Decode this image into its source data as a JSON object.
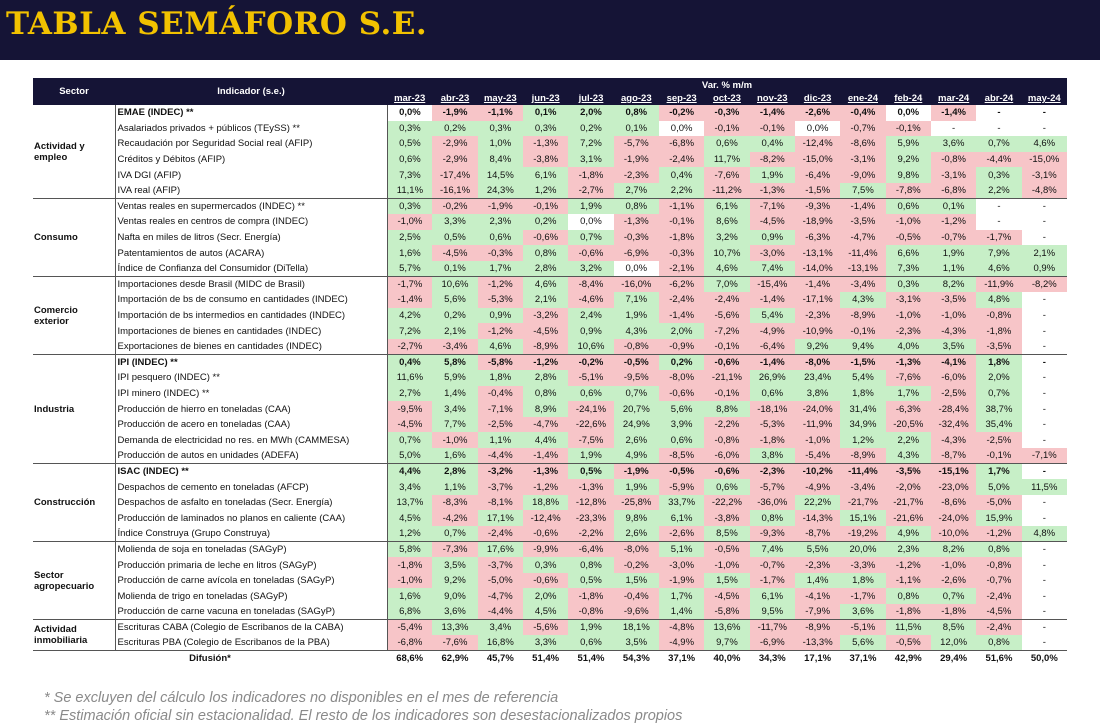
{
  "title": "TABLA SEMÁFORO S.E.",
  "headers": {
    "sector": "Sector",
    "indicator": "Indicador (s.e.)",
    "var": "Var. % m/m",
    "months": [
      "mar-23",
      "abr-23",
      "may-23",
      "jun-23",
      "jul-23",
      "ago-23",
      "sep-23",
      "oct-23",
      "nov-23",
      "dic-23",
      "ene-24",
      "feb-24",
      "mar-24",
      "abr-24",
      "may-24"
    ]
  },
  "groups": [
    {
      "sector": "Actividad y empleo",
      "rows": [
        {
          "name": "EMAE (INDEC) **",
          "bold": true,
          "values": [
            "0,0%",
            "-1,9%",
            "-1,1%",
            "0,1%",
            "2,0%",
            "0,8%",
            "-0,2%",
            "-0,3%",
            "-1,4%",
            "-2,6%",
            "-0,4%",
            "0,0%",
            "-1,4%",
            "-",
            "-"
          ]
        },
        {
          "name": "Asalariados privados + públicos (TEySS) **",
          "values": [
            "0,3%",
            "0,2%",
            "0,3%",
            "0,3%",
            "0,2%",
            "0,1%",
            "0,0%",
            "-0,1%",
            "-0,1%",
            "0,0%",
            "-0,7%",
            "-0,1%",
            "-",
            "-",
            "-"
          ]
        },
        {
          "name": "Recaudación por Seguridad Social real (AFIP)",
          "values": [
            "0,5%",
            "-2,9%",
            "1,0%",
            "-1,3%",
            "7,2%",
            "-5,7%",
            "-6,8%",
            "0,6%",
            "0,4%",
            "-12,4%",
            "-8,6%",
            "5,9%",
            "3,6%",
            "0,7%",
            "4,6%"
          ]
        },
        {
          "name": "Créditos y Débitos (AFIP)",
          "values": [
            "0,6%",
            "-2,9%",
            "8,4%",
            "-3,8%",
            "3,1%",
            "-1,9%",
            "-2,4%",
            "11,7%",
            "-8,2%",
            "-15,0%",
            "-3,1%",
            "9,2%",
            "-0,8%",
            "-4,4%",
            "-15,0%"
          ]
        },
        {
          "name": "IVA DGI (AFIP)",
          "values": [
            "7,3%",
            "-17,4%",
            "14,5%",
            "6,1%",
            "-1,8%",
            "-2,3%",
            "0,4%",
            "-7,6%",
            "1,9%",
            "-6,4%",
            "-9,0%",
            "9,8%",
            "-3,1%",
            "0,3%",
            "-3,1%"
          ]
        },
        {
          "name": "IVA real (AFIP)",
          "values": [
            "11,1%",
            "-16,1%",
            "24,3%",
            "1,2%",
            "-2,7%",
            "2,7%",
            "2,2%",
            "-11,2%",
            "-1,3%",
            "-1,5%",
            "7,5%",
            "-7,8%",
            "-6,8%",
            "2,2%",
            "-4,8%"
          ]
        }
      ]
    },
    {
      "sector": "Consumo",
      "rows": [
        {
          "name": "Ventas reales en supermercados (INDEC) **",
          "values": [
            "0,3%",
            "-0,2%",
            "-1,9%",
            "-0,1%",
            "1,9%",
            "0,8%",
            "-1,1%",
            "6,1%",
            "-7,1%",
            "-9,3%",
            "-1,4%",
            "0,6%",
            "0,1%",
            "-",
            "-"
          ]
        },
        {
          "name": "Ventas reales en centros de compra (INDEC)",
          "values": [
            "-1,0%",
            "3,3%",
            "2,3%",
            "0,2%",
            "0,0%",
            "-1,3%",
            "-0,1%",
            "8,6%",
            "-4,5%",
            "-18,9%",
            "-3,5%",
            "-1,0%",
            "-1,2%",
            "-",
            "-"
          ]
        },
        {
          "name": "Nafta en miles de litros (Secr. Energía)",
          "values": [
            "2,5%",
            "0,5%",
            "0,6%",
            "-0,6%",
            "0,7%",
            "-0,3%",
            "-1,8%",
            "3,2%",
            "0,9%",
            "-6,3%",
            "-4,7%",
            "-0,5%",
            "-0,7%",
            "-1,7%",
            "-"
          ]
        },
        {
          "name": "Patentamientos de autos (ACARA)",
          "values": [
            "1,6%",
            "-4,5%",
            "-0,3%",
            "0,8%",
            "-0,6%",
            "-6,9%",
            "-0,3%",
            "10,7%",
            "-3,0%",
            "-13,1%",
            "-11,4%",
            "6,6%",
            "1,9%",
            "7,9%",
            "2,1%"
          ]
        },
        {
          "name": "Índice de Confianza del Consumidor (DiTella)",
          "values": [
            "5,7%",
            "0,1%",
            "1,7%",
            "2,8%",
            "3,2%",
            "0,0%",
            "-2,1%",
            "4,6%",
            "7,4%",
            "-14,0%",
            "-13,1%",
            "7,3%",
            "1,1%",
            "4,6%",
            "0,9%"
          ]
        }
      ]
    },
    {
      "sector": "Comercio exterior",
      "rows": [
        {
          "name": "Importaciones desde Brasil (MIDC de Brasil)",
          "values": [
            "-1,7%",
            "10,6%",
            "-1,2%",
            "4,6%",
            "-8,4%",
            "-16,0%",
            "-6,2%",
            "7,0%",
            "-15,4%",
            "-1,4%",
            "-3,4%",
            "0,3%",
            "8,2%",
            "-11,9%",
            "-8,2%"
          ]
        },
        {
          "name": "Importación de bs de consumo en cantidades (INDEC)",
          "values": [
            "-1,4%",
            "5,6%",
            "-5,3%",
            "2,1%",
            "-4,6%",
            "7,1%",
            "-2,4%",
            "-2,4%",
            "-1,4%",
            "-17,1%",
            "4,3%",
            "-3,1%",
            "-3,5%",
            "4,8%",
            "-"
          ]
        },
        {
          "name": "Importación de bs intermedios en cantidades (INDEC)",
          "values": [
            "4,2%",
            "0,2%",
            "0,9%",
            "-3,2%",
            "2,4%",
            "1,9%",
            "-1,4%",
            "-5,6%",
            "5,4%",
            "-2,3%",
            "-8,9%",
            "-1,0%",
            "-1,0%",
            "-0,8%",
            "-"
          ]
        },
        {
          "name": "Importaciones de bienes en cantidades (INDEC)",
          "values": [
            "7,2%",
            "2,1%",
            "-1,2%",
            "-4,5%",
            "0,9%",
            "4,3%",
            "2,0%",
            "-7,2%",
            "-4,9%",
            "-10,9%",
            "-0,1%",
            "-2,3%",
            "-4,3%",
            "-1,8%",
            "-"
          ]
        },
        {
          "name": "Exportaciones de bienes en cantidades (INDEC)",
          "values": [
            "-2,7%",
            "-3,4%",
            "4,6%",
            "-8,9%",
            "10,6%",
            "-0,8%",
            "-0,9%",
            "-0,1%",
            "-6,4%",
            "9,2%",
            "9,4%",
            "4,0%",
            "3,5%",
            "-3,5%",
            "-"
          ]
        }
      ]
    },
    {
      "sector": "Industria",
      "rows": [
        {
          "name": "IPI (INDEC) **",
          "bold": true,
          "values": [
            "0,4%",
            "5,8%",
            "-5,8%",
            "-1,2%",
            "-0,2%",
            "-0,5%",
            "0,2%",
            "-0,6%",
            "-1,4%",
            "-8,0%",
            "-1,5%",
            "-1,3%",
            "-4,1%",
            "1,8%",
            "-"
          ]
        },
        {
          "name": "IPI pesquero (INDEC) **",
          "values": [
            "11,6%",
            "5,9%",
            "1,8%",
            "2,8%",
            "-5,1%",
            "-9,5%",
            "-8,0%",
            "-21,1%",
            "26,9%",
            "23,4%",
            "5,4%",
            "-7,6%",
            "-6,0%",
            "2,0%",
            "-"
          ]
        },
        {
          "name": "IPI minero (INDEC) **",
          "values": [
            "2,7%",
            "1,4%",
            "-0,4%",
            "0,8%",
            "0,6%",
            "0,7%",
            "-0,6%",
            "-0,1%",
            "0,6%",
            "3,8%",
            "1,8%",
            "1,7%",
            "-2,5%",
            "0,7%",
            "-"
          ]
        },
        {
          "name": "Producción de hierro en toneladas (CAA)",
          "values": [
            "-9,5%",
            "3,4%",
            "-7,1%",
            "8,9%",
            "-24,1%",
            "20,7%",
            "5,6%",
            "8,8%",
            "-18,1%",
            "-24,0%",
            "31,4%",
            "-6,3%",
            "-28,4%",
            "38,7%",
            "-"
          ]
        },
        {
          "name": "Producción de acero en toneladas (CAA)",
          "values": [
            "-4,5%",
            "7,7%",
            "-2,5%",
            "-4,7%",
            "-22,6%",
            "24,9%",
            "3,9%",
            "-2,2%",
            "-5,3%",
            "-11,9%",
            "34,9%",
            "-20,5%",
            "-32,4%",
            "35,4%",
            "-"
          ]
        },
        {
          "name": "Demanda de electricidad no res. en MWh (CAMMESA)",
          "values": [
            "0,7%",
            "-1,0%",
            "1,1%",
            "4,4%",
            "-7,5%",
            "2,6%",
            "0,6%",
            "-0,8%",
            "-1,8%",
            "-1,0%",
            "1,2%",
            "2,2%",
            "-4,3%",
            "-2,5%",
            "-"
          ]
        },
        {
          "name": "Producción de autos en unidades (ADEFA)",
          "values": [
            "5,0%",
            "1,6%",
            "-4,4%",
            "-1,4%",
            "1,9%",
            "4,9%",
            "-8,5%",
            "-6,0%",
            "3,8%",
            "-5,4%",
            "-8,9%",
            "4,3%",
            "-8,7%",
            "-0,1%",
            "-7,1%"
          ]
        }
      ]
    },
    {
      "sector": "Construcción",
      "rows": [
        {
          "name": "ISAC (INDEC) **",
          "bold": true,
          "values": [
            "4,4%",
            "2,8%",
            "-3,2%",
            "-1,3%",
            "0,5%",
            "-1,9%",
            "-0,5%",
            "-0,6%",
            "-2,3%",
            "-10,2%",
            "-11,4%",
            "-3,5%",
            "-15,1%",
            "1,7%",
            "-"
          ]
        },
        {
          "name": "Despachos de cemento en toneladas (AFCP)",
          "values": [
            "3,4%",
            "1,1%",
            "-3,7%",
            "-1,2%",
            "-1,3%",
            "1,9%",
            "-5,9%",
            "0,6%",
            "-5,7%",
            "-4,9%",
            "-3,4%",
            "-2,0%",
            "-23,0%",
            "5,0%",
            "11,5%"
          ]
        },
        {
          "name": "Despachos de asfalto en toneladas (Secr. Energía)",
          "values": [
            "13,7%",
            "-8,3%",
            "-8,1%",
            "18,8%",
            "-12,8%",
            "-25,8%",
            "33,7%",
            "-22,2%",
            "-36,0%",
            "22,2%",
            "-21,7%",
            "-21,7%",
            "-8,6%",
            "-5,0%",
            "-"
          ]
        },
        {
          "name": "Producción de laminados no planos en caliente (CAA)",
          "values": [
            "4,5%",
            "-4,2%",
            "17,1%",
            "-12,4%",
            "-23,3%",
            "9,8%",
            "6,1%",
            "-3,8%",
            "0,8%",
            "-14,3%",
            "15,1%",
            "-21,6%",
            "-24,0%",
            "15,9%",
            "-"
          ]
        },
        {
          "name": "Índice Construya (Grupo Construya)",
          "values": [
            "1,2%",
            "0,7%",
            "-2,4%",
            "-0,6%",
            "-2,2%",
            "2,6%",
            "-2,6%",
            "8,5%",
            "-9,3%",
            "-8,7%",
            "-19,2%",
            "4,9%",
            "-10,0%",
            "-1,2%",
            "4,8%"
          ]
        }
      ]
    },
    {
      "sector": "Sector agropecuario",
      "rows": [
        {
          "name": "Molienda de soja en toneladas (SAGyP)",
          "values": [
            "5,8%",
            "-7,3%",
            "17,6%",
            "-9,9%",
            "-6,4%",
            "-8,0%",
            "5,1%",
            "-0,5%",
            "7,4%",
            "5,5%",
            "20,0%",
            "2,3%",
            "8,2%",
            "0,8%",
            "-"
          ]
        },
        {
          "name": "Producción primaria de leche en litros (SAGyP)",
          "values": [
            "-1,8%",
            "3,5%",
            "-3,7%",
            "0,3%",
            "0,8%",
            "-0,2%",
            "-3,0%",
            "-1,0%",
            "-0,7%",
            "-2,3%",
            "-3,3%",
            "-1,2%",
            "-1,0%",
            "-0,8%",
            "-"
          ]
        },
        {
          "name": "Producción de carne avícola en toneladas (SAGyP)",
          "values": [
            "-1,0%",
            "9,2%",
            "-5,0%",
            "-0,6%",
            "0,5%",
            "1,5%",
            "-1,9%",
            "1,5%",
            "-1,7%",
            "1,4%",
            "1,8%",
            "-1,1%",
            "-2,6%",
            "-0,7%",
            "-"
          ]
        },
        {
          "name": "Molienda de trigo en toneladas (SAGyP)",
          "values": [
            "1,6%",
            "9,0%",
            "-4,7%",
            "2,0%",
            "-1,8%",
            "-0,4%",
            "1,7%",
            "-4,5%",
            "6,1%",
            "-4,1%",
            "-1,7%",
            "0,8%",
            "0,7%",
            "-2,4%",
            "-"
          ]
        },
        {
          "name": "Producción de carne vacuna en toneladas (SAGyP)",
          "values": [
            "6,8%",
            "3,6%",
            "-4,4%",
            "4,5%",
            "-0,8%",
            "-9,6%",
            "1,4%",
            "-5,8%",
            "9,5%",
            "-7,9%",
            "3,6%",
            "-1,8%",
            "-1,8%",
            "-4,5%",
            "-"
          ]
        }
      ]
    },
    {
      "sector": "Actividad inmobiliaria",
      "rows": [
        {
          "name": "Escrituras CABA (Colegio de Escribanos de la CABA)",
          "values": [
            "-5,4%",
            "13,3%",
            "3,4%",
            "-5,6%",
            "1,9%",
            "18,1%",
            "-4,8%",
            "13,6%",
            "-11,7%",
            "-8,9%",
            "-5,1%",
            "11,5%",
            "8,5%",
            "-2,4%",
            "-"
          ]
        },
        {
          "name": "Escrituras PBA (Colegio de Escribanos de la PBA)",
          "values": [
            "-6,8%",
            "-7,6%",
            "16,8%",
            "3,3%",
            "0,6%",
            "3,5%",
            "-4,9%",
            "9,7%",
            "-6,9%",
            "-13,3%",
            "5,6%",
            "-0,5%",
            "12,0%",
            "0,8%",
            "-"
          ]
        }
      ]
    }
  ],
  "diffusion": {
    "label": "Difusión*",
    "values": [
      "68,6%",
      "62,9%",
      "45,7%",
      "51,4%",
      "51,4%",
      "54,3%",
      "37,1%",
      "40,0%",
      "34,3%",
      "17,1%",
      "37,1%",
      "42,9%",
      "29,4%",
      "51,6%",
      "50,0%"
    ]
  },
  "notes": [
    "* Se excluyen del cálculo los indicadores no disponibles en el mes de referencia",
    "** Estimación oficial sin estacionalidad. El resto de los indicadores son desestacionalizados propios"
  ],
  "colors": {
    "positive": "#c7efc7",
    "negative": "#f7c5c8",
    "header": "#151436",
    "title": "#f2c200"
  }
}
